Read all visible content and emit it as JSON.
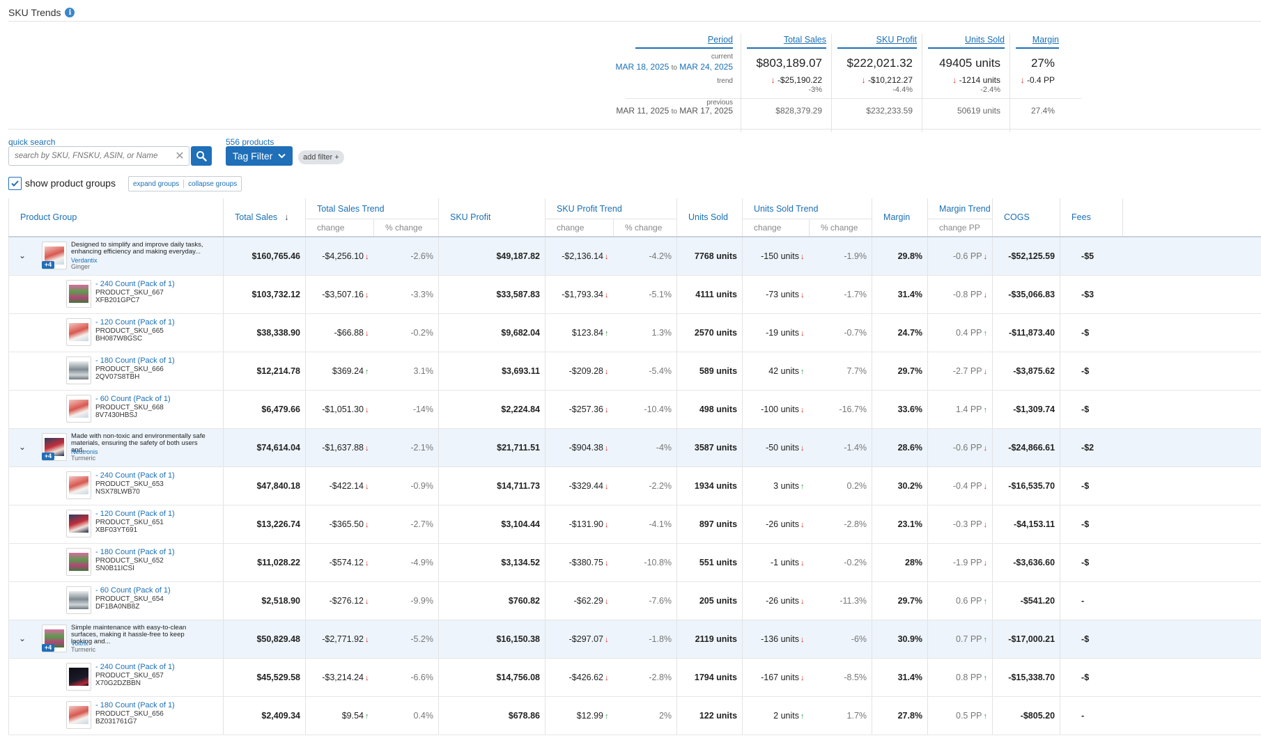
{
  "header": {
    "title": "SKU Trends",
    "info_icon": "info-icon"
  },
  "summary": {
    "period_label": "Period",
    "current_label": "current",
    "trend_label": "trend",
    "previous_label": "previous",
    "to_word": "to",
    "current_start": "MAR 18, 2025",
    "current_end": "MAR 24, 2025",
    "previous_start": "MAR 11, 2025",
    "previous_end": "MAR 17, 2025",
    "columns": [
      {
        "label": "Total Sales",
        "current": "$803,189.07",
        "trend": "-$25,190.22",
        "trend_dir": "down",
        "pct": "-3%",
        "previous": "$828,379.29"
      },
      {
        "label": "SKU Profit",
        "current": "$222,021.32",
        "trend": "-$10,212.27",
        "trend_dir": "down",
        "pct": "-4.4%",
        "previous": "$232,233.59"
      },
      {
        "label": "Units Sold",
        "current": "49405 units",
        "trend": "-1214 units",
        "trend_dir": "down",
        "pct": "-2.4%",
        "previous": "50619 units"
      },
      {
        "label": "Margin",
        "current": "27%",
        "trend": "-0.4 PP",
        "trend_dir": "down",
        "pct": "",
        "previous": "27.4%"
      }
    ]
  },
  "filters": {
    "quick_search_label": "quick search",
    "search_placeholder": "search by SKU, FNSKU, ASIN, or Name",
    "product_count": "556 products",
    "tag_filter_label": "Tag Filter",
    "add_filter_label": "add filter +",
    "show_groups_label": "show product groups",
    "show_groups_checked": true,
    "expand_label": "expand groups",
    "collapse_label": "collapse groups"
  },
  "table": {
    "headers": {
      "product_group": "Product Group",
      "total_sales": "Total Sales",
      "total_sales_trend": "Total Sales Trend",
      "sku_profit": "SKU Profit",
      "sku_profit_trend": "SKU Profit Trend",
      "units_sold": "Units Sold",
      "units_sold_trend": "Units Sold Trend",
      "margin": "Margin",
      "margin_trend": "Margin Trend",
      "cogs": "COGS",
      "fees": "Fees",
      "change": "change",
      "pct_change": "% change",
      "change_pp": "change PP"
    },
    "rows": [
      {
        "type": "group",
        "desc": "Designed to simplify and improve daily tasks, enhancing efficiency and making everyday...",
        "brand": "Verdantix",
        "category": "Ginger",
        "badge": "+4",
        "thumb": "pink",
        "sales": "$160,765.46",
        "sales_chg": "-$4,256.10",
        "sales_dir": "down",
        "sales_pct": "-2.6%",
        "profit": "$49,187.82",
        "profit_chg": "-$2,136.14",
        "profit_dir": "down",
        "profit_pct": "-4.2%",
        "units": "7768 units",
        "units_chg": "-150 units",
        "units_dir": "down",
        "units_pct": "-1.9%",
        "margin": "29.8%",
        "margin_pp": "-0.6 PP",
        "margin_dir": "down",
        "cogs": "-$52,125.59",
        "fees": "-$5"
      },
      {
        "type": "sku",
        "variant": "- 240 Count (Pack of 1)",
        "sku": "PRODUCT_SKU_667",
        "asin": "XFB201GPC7",
        "thumb": "flower",
        "sales": "$103,732.12",
        "sales_chg": "-$3,507.16",
        "sales_dir": "down",
        "sales_pct": "-3.3%",
        "profit": "$33,587.83",
        "profit_chg": "-$1,793.34",
        "profit_dir": "down",
        "profit_pct": "-5.1%",
        "units": "4111 units",
        "units_chg": "-73 units",
        "units_dir": "down",
        "units_pct": "-1.7%",
        "margin": "31.4%",
        "margin_pp": "-0.8 PP",
        "margin_dir": "down",
        "cogs": "-$35,066.83",
        "fees": "-$3"
      },
      {
        "type": "sku",
        "variant": "- 120 Count (Pack of 1)",
        "sku": "PRODUCT_SKU_665",
        "asin": "BH087W8GSC",
        "thumb": "pink",
        "sales": "$38,338.90",
        "sales_chg": "-$66.88",
        "sales_dir": "down",
        "sales_pct": "-0.2%",
        "profit": "$9,682.04",
        "profit_chg": "$123.84",
        "profit_dir": "up",
        "profit_pct": "1.3%",
        "units": "2570 units",
        "units_chg": "-19 units",
        "units_dir": "down",
        "units_pct": "-0.7%",
        "margin": "24.7%",
        "margin_pp": "0.4 PP",
        "margin_dir": "up",
        "cogs": "-$11,873.40",
        "fees": "-$"
      },
      {
        "type": "sku",
        "variant": "- 180 Count (Pack of 1)",
        "sku": "PRODUCT_SKU_666",
        "asin": "2QV07S8TBH",
        "thumb": "grey",
        "sales": "$12,214.78",
        "sales_chg": "$369.24",
        "sales_dir": "up",
        "sales_pct": "3.1%",
        "profit": "$3,693.11",
        "profit_chg": "-$209.28",
        "profit_dir": "down",
        "profit_pct": "-5.4%",
        "units": "589 units",
        "units_chg": "42 units",
        "units_dir": "up",
        "units_pct": "7.7%",
        "margin": "29.7%",
        "margin_pp": "-2.7 PP",
        "margin_dir": "down",
        "cogs": "-$3,875.62",
        "fees": "-$"
      },
      {
        "type": "sku",
        "variant": "- 60 Count (Pack of 1)",
        "sku": "PRODUCT_SKU_668",
        "asin": "8V7430HBSJ",
        "thumb": "pink",
        "sales": "$6,479.66",
        "sales_chg": "-$1,051.30",
        "sales_dir": "down",
        "sales_pct": "-14%",
        "profit": "$2,224.84",
        "profit_chg": "-$257.36",
        "profit_dir": "down",
        "profit_pct": "-10.4%",
        "units": "498 units",
        "units_chg": "-100 units",
        "units_dir": "down",
        "units_pct": "-16.7%",
        "margin": "33.6%",
        "margin_pp": "1.4 PP",
        "margin_dir": "up",
        "cogs": "-$1,309.74",
        "fees": "-$"
      },
      {
        "type": "group",
        "desc": "Made with non-toxic and environmentally safe materials, ensuring the safety of both users and...",
        "brand": "Neutronis",
        "category": "Turmeric",
        "badge": "+4",
        "thumb": "dark",
        "sales": "$74,614.04",
        "sales_chg": "-$1,637.88",
        "sales_dir": "down",
        "sales_pct": "-2.1%",
        "profit": "$21,711.51",
        "profit_chg": "-$904.38",
        "profit_dir": "down",
        "profit_pct": "-4%",
        "units": "3587 units",
        "units_chg": "-50 units",
        "units_dir": "down",
        "units_pct": "-1.4%",
        "margin": "28.6%",
        "margin_pp": "-0.6 PP",
        "margin_dir": "down",
        "cogs": "-$24,866.61",
        "fees": "-$2"
      },
      {
        "type": "sku",
        "variant": "- 240 Count (Pack of 1)",
        "sku": "PRODUCT_SKU_653",
        "asin": "NSX78LWB70",
        "thumb": "pink",
        "sales": "$47,840.18",
        "sales_chg": "-$422.14",
        "sales_dir": "down",
        "sales_pct": "-0.9%",
        "profit": "$14,711.73",
        "profit_chg": "-$329.44",
        "profit_dir": "down",
        "profit_pct": "-2.2%",
        "units": "1934 units",
        "units_chg": "3 units",
        "units_dir": "up",
        "units_pct": "0.2%",
        "margin": "30.2%",
        "margin_pp": "-0.4 PP",
        "margin_dir": "down",
        "cogs": "-$16,535.70",
        "fees": "-$"
      },
      {
        "type": "sku",
        "variant": "- 120 Count (Pack of 1)",
        "sku": "PRODUCT_SKU_651",
        "asin": "XBF03YT691",
        "thumb": "dark",
        "sales": "$13,226.74",
        "sales_chg": "-$365.50",
        "sales_dir": "down",
        "sales_pct": "-2.7%",
        "profit": "$3,104.44",
        "profit_chg": "-$131.90",
        "profit_dir": "down",
        "profit_pct": "-4.1%",
        "units": "897 units",
        "units_chg": "-26 units",
        "units_dir": "down",
        "units_pct": "-2.8%",
        "margin": "23.1%",
        "margin_pp": "-0.3 PP",
        "margin_dir": "down",
        "cogs": "-$4,153.11",
        "fees": "-$"
      },
      {
        "type": "sku",
        "variant": "- 180 Count (Pack of 1)",
        "sku": "PRODUCT_SKU_652",
        "asin": "SN0B11ICSI",
        "thumb": "flower",
        "sales": "$11,028.22",
        "sales_chg": "-$574.12",
        "sales_dir": "down",
        "sales_pct": "-4.9%",
        "profit": "$3,134.52",
        "profit_chg": "-$380.75",
        "profit_dir": "down",
        "profit_pct": "-10.8%",
        "units": "551 units",
        "units_chg": "-1 units",
        "units_dir": "down",
        "units_pct": "-0.2%",
        "margin": "28%",
        "margin_pp": "-1.9 PP",
        "margin_dir": "down",
        "cogs": "-$3,636.60",
        "fees": "-$"
      },
      {
        "type": "sku",
        "variant": "- 60 Count (Pack of 1)",
        "sku": "PRODUCT_SKU_654",
        "asin": "DF1BA0NB8Z",
        "thumb": "grey",
        "sales": "$2,518.90",
        "sales_chg": "-$276.12",
        "sales_dir": "down",
        "sales_pct": "-9.9%",
        "profit": "$760.82",
        "profit_chg": "-$62.29",
        "profit_dir": "down",
        "profit_pct": "-7.6%",
        "units": "205 units",
        "units_chg": "-26 units",
        "units_dir": "down",
        "units_pct": "-11.3%",
        "margin": "29.7%",
        "margin_pp": "0.6 PP",
        "margin_dir": "up",
        "cogs": "-$541.20",
        "fees": "-"
      },
      {
        "type": "group",
        "desc": "Simple maintenance with easy-to-clean surfaces, making it hassle-free to keep looking and...",
        "brand": "Voltrix",
        "category": "Turmeric",
        "badge": "+4",
        "thumb": "flower",
        "sales": "$50,829.48",
        "sales_chg": "-$2,771.92",
        "sales_dir": "down",
        "sales_pct": "-5.2%",
        "profit": "$16,150.38",
        "profit_chg": "-$297.07",
        "profit_dir": "down",
        "profit_pct": "-1.8%",
        "units": "2119 units",
        "units_chg": "-136 units",
        "units_dir": "down",
        "units_pct": "-6%",
        "margin": "30.9%",
        "margin_pp": "0.7 PP",
        "margin_dir": "up",
        "cogs": "-$17,000.21",
        "fees": "-$"
      },
      {
        "type": "sku",
        "variant": "- 240 Count (Pack of 1)",
        "sku": "PRODUCT_SKU_657",
        "asin": "X70G2DZBBN",
        "thumb": "black",
        "sales": "$45,529.58",
        "sales_chg": "-$3,214.24",
        "sales_dir": "down",
        "sales_pct": "-6.6%",
        "profit": "$14,756.08",
        "profit_chg": "-$426.62",
        "profit_dir": "down",
        "profit_pct": "-2.8%",
        "units": "1794 units",
        "units_chg": "-167 units",
        "units_dir": "down",
        "units_pct": "-8.5%",
        "margin": "31.4%",
        "margin_pp": "0.8 PP",
        "margin_dir": "up",
        "cogs": "-$15,338.70",
        "fees": "-$"
      },
      {
        "type": "sku",
        "variant": "- 180 Count (Pack of 1)",
        "sku": "PRODUCT_SKU_656",
        "asin": "BZ031761G7",
        "thumb": "pink",
        "sales": "$2,409.34",
        "sales_chg": "$9.54",
        "sales_dir": "up",
        "sales_pct": "0.4%",
        "profit": "$678.86",
        "profit_chg": "$12.99",
        "profit_dir": "up",
        "profit_pct": "2%",
        "units": "122 units",
        "units_chg": "2 units",
        "units_dir": "up",
        "units_pct": "1.7%",
        "margin": "27.8%",
        "margin_pp": "0.5 PP",
        "margin_dir": "up",
        "cogs": "-$805.20",
        "fees": "-"
      }
    ]
  },
  "colors": {
    "accent": "#1f6fb9",
    "link": "#1a6fb5",
    "down": "#d9281c",
    "up": "#2f9d49",
    "group_row_bg": "#edf4fb"
  }
}
